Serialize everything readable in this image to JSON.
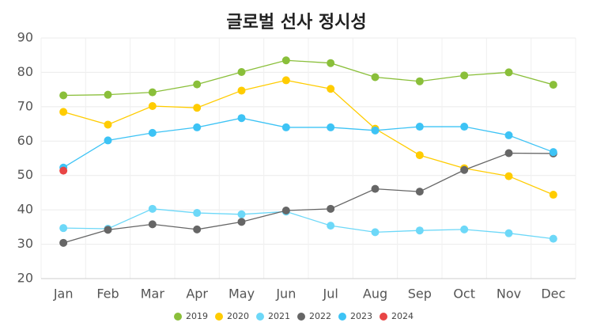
{
  "chart_data": {
    "type": "line",
    "title": "글로벌 선사 정시성",
    "categories": [
      "Jan",
      "Feb",
      "Mar",
      "Apr",
      "May",
      "Jun",
      "Jul",
      "Aug",
      "Sep",
      "Oct",
      "Nov",
      "Dec"
    ],
    "series": [
      {
        "name": "2019",
        "color": "#8abf3a",
        "values": [
          73.3,
          73.5,
          74.2,
          76.5,
          80.1,
          83.5,
          82.7,
          78.6,
          77.4,
          79.1,
          80.0,
          76.4
        ]
      },
      {
        "name": "2020",
        "color": "#ffcc00",
        "values": [
          68.5,
          64.8,
          70.2,
          69.7,
          74.7,
          77.7,
          75.2,
          63.6,
          55.9,
          52.1,
          49.8,
          44.4
        ]
      },
      {
        "name": "2021",
        "color": "#6dd8f8",
        "values": [
          34.7,
          34.5,
          40.3,
          39.1,
          38.7,
          39.5,
          35.4,
          33.5,
          34.0,
          34.3,
          33.2,
          31.6
        ]
      },
      {
        "name": "2022",
        "color": "#666666",
        "values": [
          30.4,
          34.2,
          35.8,
          34.3,
          36.5,
          39.8,
          40.3,
          46.1,
          45.3,
          51.6,
          56.5,
          56.4
        ]
      },
      {
        "name": "2023",
        "color": "#3dc3f5",
        "values": [
          52.3,
          60.2,
          62.4,
          64.0,
          66.7,
          64.0,
          64.0,
          63.1,
          64.2,
          64.2,
          61.7,
          56.8
        ]
      },
      {
        "name": "2024",
        "color": "#e84545",
        "values": [
          51.4,
          null,
          null,
          null,
          null,
          null,
          null,
          null,
          null,
          null,
          null,
          null
        ]
      }
    ],
    "ylim": [
      20,
      90
    ],
    "yticks": [
      20,
      30,
      40,
      50,
      60,
      70,
      80,
      90
    ],
    "grid": true,
    "legend": "bottom"
  }
}
